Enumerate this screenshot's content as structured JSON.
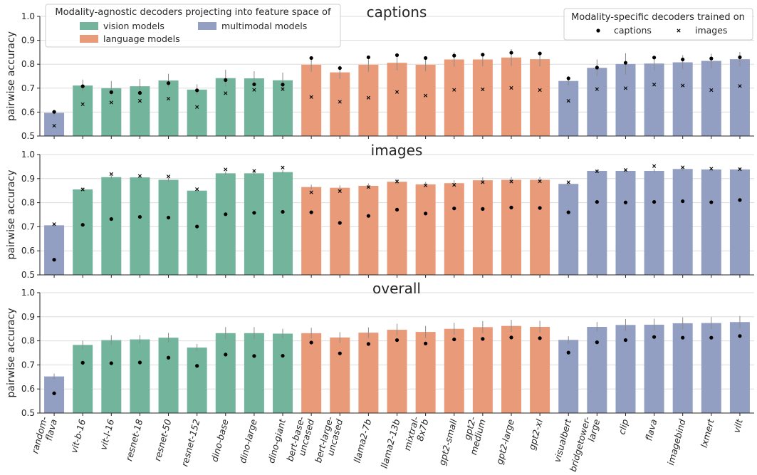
{
  "chart_data": {
    "type": "bar",
    "ylabel": "pairwise accuracy",
    "ylim": [
      0.5,
      1.0
    ],
    "yticks": [
      "0.5",
      "0.6",
      "0.7",
      "0.8",
      "0.9",
      "1.0"
    ],
    "grid": true,
    "categories": [
      "random-\nflava",
      "vit-b-16",
      "vit-l-16",
      "resnet-18",
      "resnet-50",
      "resnet-152",
      "dino-base",
      "dino-large",
      "dino-giant",
      "bert-base-\nuncased",
      "bert-large-\nuncased",
      "llama2-7b",
      "llama2-13b",
      "mixtral-\n8x7b",
      "gpt2-small",
      "gpt2-\nmedium",
      "gpt2-large",
      "gpt2-xl",
      "visualbert",
      "bridgetower-\nlarge",
      "clip",
      "flava",
      "imagebind",
      "lxmert",
      "vilt"
    ],
    "bar_group": [
      "multimodal",
      "vision",
      "vision",
      "vision",
      "vision",
      "vision",
      "vision",
      "vision",
      "vision",
      "language",
      "language",
      "language",
      "language",
      "language",
      "language",
      "language",
      "language",
      "language",
      "multimodal",
      "multimodal",
      "multimodal",
      "multimodal",
      "multimodal",
      "multimodal",
      "multimodal"
    ],
    "colors": {
      "vision": "#72b59c",
      "language": "#e99a78",
      "multimodal": "#939fc2"
    },
    "legend_agnostic": {
      "title": "Modality-agnostic decoders projecting into feature space of",
      "entries": [
        {
          "key": "vision",
          "label": "vision models"
        },
        {
          "key": "multimodal",
          "label": "multimodal models"
        },
        {
          "key": "language",
          "label": "language models"
        }
      ],
      "placement": "top-left"
    },
    "legend_specific": {
      "title": "Modality-specific decoders trained on",
      "entries": [
        {
          "marker": "dot",
          "label": "captions"
        },
        {
          "marker": "x",
          "label": "images"
        }
      ],
      "placement": "top-right"
    },
    "panels": [
      {
        "title": "captions",
        "bars": [
          0.597,
          0.711,
          0.7,
          0.708,
          0.732,
          0.694,
          0.742,
          0.741,
          0.733,
          0.798,
          0.766,
          0.798,
          0.806,
          0.798,
          0.82,
          0.82,
          0.828,
          0.821,
          0.73,
          0.785,
          0.801,
          0.803,
          0.808,
          0.814,
          0.821
        ],
        "errors": [
          0.012,
          0.025,
          0.03,
          0.03,
          0.028,
          0.022,
          0.035,
          0.03,
          0.032,
          0.03,
          0.028,
          0.03,
          0.032,
          0.028,
          0.03,
          0.028,
          0.035,
          0.03,
          0.02,
          0.035,
          0.045,
          0.03,
          0.03,
          0.03,
          0.03
        ],
        "captions_markers": [
          0.601,
          0.708,
          0.683,
          0.68,
          0.721,
          0.691,
          0.734,
          0.716,
          0.715,
          0.826,
          0.784,
          0.829,
          0.838,
          0.826,
          0.836,
          0.84,
          0.848,
          0.845,
          0.741,
          0.786,
          0.806,
          0.828,
          0.82,
          0.824,
          0.829
        ],
        "images_markers": [
          0.543,
          0.633,
          0.64,
          0.647,
          0.656,
          0.621,
          0.679,
          0.693,
          0.696,
          0.663,
          0.643,
          0.66,
          0.684,
          0.669,
          0.693,
          0.695,
          0.701,
          0.692,
          0.647,
          0.696,
          0.7,
          0.715,
          0.711,
          0.692,
          0.709
        ]
      },
      {
        "title": "images",
        "bars": [
          0.706,
          0.855,
          0.906,
          0.905,
          0.895,
          0.85,
          0.922,
          0.922,
          0.927,
          0.865,
          0.862,
          0.87,
          0.887,
          0.876,
          0.881,
          0.893,
          0.895,
          0.895,
          0.878,
          0.932,
          0.932,
          0.932,
          0.94,
          0.938,
          0.938
        ],
        "errors": [
          0.008,
          0.008,
          0.008,
          0.008,
          0.008,
          0.008,
          0.008,
          0.008,
          0.008,
          0.01,
          0.01,
          0.01,
          0.012,
          0.01,
          0.012,
          0.012,
          0.012,
          0.012,
          0.01,
          0.008,
          0.008,
          0.008,
          0.008,
          0.008,
          0.008
        ],
        "captions_markers": [
          0.563,
          0.708,
          0.732,
          0.741,
          0.738,
          0.701,
          0.752,
          0.758,
          0.762,
          0.76,
          0.716,
          0.745,
          0.771,
          0.755,
          0.776,
          0.774,
          0.78,
          0.778,
          0.76,
          0.803,
          0.801,
          0.803,
          0.806,
          0.802,
          0.811
        ],
        "images_markers": [
          0.711,
          0.855,
          0.919,
          0.911,
          0.909,
          0.856,
          0.938,
          0.932,
          0.946,
          0.843,
          0.848,
          0.865,
          0.888,
          0.872,
          0.874,
          0.885,
          0.888,
          0.889,
          0.885,
          0.93,
          0.936,
          0.952,
          0.947,
          0.941,
          0.939
        ]
      },
      {
        "title": "overall",
        "bars": [
          0.652,
          0.783,
          0.803,
          0.806,
          0.813,
          0.772,
          0.832,
          0.832,
          0.83,
          0.832,
          0.814,
          0.834,
          0.846,
          0.837,
          0.85,
          0.857,
          0.862,
          0.858,
          0.804,
          0.858,
          0.866,
          0.867,
          0.873,
          0.874,
          0.878
        ],
        "errors": [
          0.012,
          0.018,
          0.02,
          0.018,
          0.02,
          0.015,
          0.025,
          0.025,
          0.02,
          0.022,
          0.022,
          0.022,
          0.025,
          0.025,
          0.025,
          0.025,
          0.025,
          0.025,
          0.015,
          0.02,
          0.025,
          0.025,
          0.025,
          0.025,
          0.025
        ],
        "captions_markers": [
          0.582,
          0.709,
          0.707,
          0.71,
          0.73,
          0.696,
          0.743,
          0.737,
          0.738,
          0.793,
          0.748,
          0.787,
          0.803,
          0.789,
          0.806,
          0.808,
          0.814,
          0.811,
          0.751,
          0.794,
          0.803,
          0.816,
          0.813,
          0.813,
          0.82
        ]
      }
    ]
  }
}
